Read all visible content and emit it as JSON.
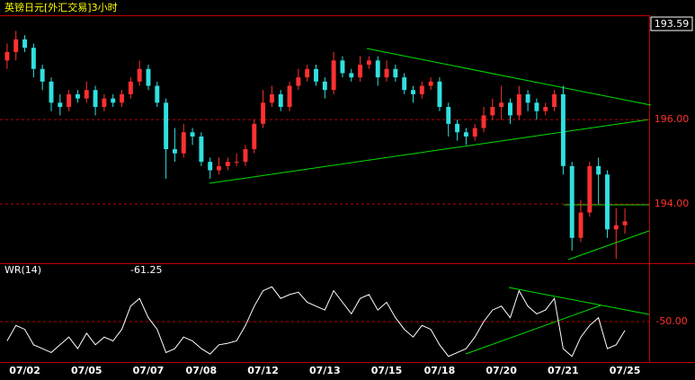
{
  "chart_data": [
    {
      "type": "candlestick",
      "title": "英镑日元[外汇交易]3小时",
      "categories": [
        null,
        null,
        "07/02",
        null,
        null,
        null,
        null,
        null,
        null,
        "07/05",
        null,
        null,
        null,
        null,
        null,
        null,
        "07/07",
        null,
        null,
        null,
        null,
        null,
        "07/08",
        null,
        null,
        null,
        null,
        null,
        null,
        "07/12",
        null,
        null,
        null,
        null,
        null,
        null,
        "07/13",
        null,
        null,
        null,
        null,
        null,
        null,
        "07/15",
        null,
        null,
        null,
        null,
        null,
        "07/18",
        null,
        null,
        null,
        null,
        null,
        null,
        "07/20",
        null,
        null,
        null,
        null,
        null,
        null,
        "07/21",
        null,
        null,
        null,
        null,
        null,
        null,
        "07/25"
      ],
      "open": [
        197.4,
        197.6,
        197.9,
        197.7,
        197.2,
        196.9,
        196.4,
        196.3,
        196.6,
        196.5,
        196.7,
        196.3,
        196.5,
        196.4,
        196.6,
        196.9,
        197.2,
        196.8,
        196.4,
        195.3,
        195.2,
        195.7,
        195.6,
        195.0,
        194.8,
        194.9,
        195.0,
        195.0,
        195.3,
        195.9,
        196.4,
        196.6,
        196.3,
        196.8,
        197.0,
        197.2,
        196.9,
        196.7,
        197.4,
        197.1,
        197.0,
        197.3,
        197.4,
        197.0,
        197.2,
        197.0,
        196.7,
        196.6,
        196.8,
        196.9,
        196.3,
        195.9,
        195.7,
        195.6,
        195.8,
        196.1,
        196.3,
        196.4,
        196.1,
        196.6,
        196.4,
        196.2,
        196.3,
        196.6,
        194.9,
        193.2,
        193.8,
        194.9,
        194.7,
        193.4,
        193.5
      ],
      "high": [
        197.8,
        198.1,
        198.0,
        197.8,
        197.3,
        197.0,
        196.6,
        196.7,
        196.7,
        196.9,
        196.8,
        196.6,
        196.6,
        196.7,
        197.0,
        197.4,
        197.3,
        196.9,
        196.5,
        195.8,
        195.9,
        195.8,
        195.7,
        195.1,
        195.1,
        195.1,
        195.2,
        195.4,
        196.0,
        196.7,
        196.8,
        196.7,
        196.9,
        197.2,
        197.3,
        197.3,
        197.0,
        197.6,
        197.5,
        197.2,
        197.5,
        197.5,
        197.5,
        197.4,
        197.3,
        197.1,
        196.8,
        196.9,
        197.0,
        197.0,
        196.4,
        196.0,
        195.8,
        195.9,
        196.3,
        196.5,
        196.8,
        196.5,
        196.8,
        196.7,
        196.5,
        196.4,
        196.7,
        196.8,
        195.0,
        194.1,
        195.0,
        195.1,
        194.8,
        193.9,
        193.9
      ],
      "low": [
        197.2,
        197.4,
        197.6,
        197.0,
        196.7,
        196.2,
        196.1,
        196.2,
        196.4,
        196.4,
        196.1,
        196.2,
        196.3,
        196.3,
        196.5,
        196.8,
        196.7,
        196.3,
        194.6,
        195.0,
        195.1,
        195.4,
        194.9,
        194.6,
        194.7,
        194.8,
        194.9,
        194.9,
        195.2,
        195.8,
        196.3,
        196.2,
        196.2,
        196.7,
        196.9,
        196.8,
        196.5,
        196.6,
        197.0,
        196.9,
        196.9,
        197.2,
        196.8,
        196.9,
        196.9,
        196.6,
        196.4,
        196.5,
        196.7,
        196.2,
        195.6,
        195.5,
        195.4,
        195.5,
        195.7,
        196.0,
        196.0,
        195.9,
        196.0,
        196.2,
        196.0,
        196.1,
        196.2,
        194.7,
        192.9,
        193.1,
        193.7,
        194.0,
        193.2,
        192.7,
        193.3
      ],
      "close": [
        197.6,
        197.9,
        197.7,
        197.2,
        196.9,
        196.4,
        196.3,
        196.6,
        196.5,
        196.7,
        196.3,
        196.5,
        196.4,
        196.6,
        196.9,
        197.2,
        196.8,
        196.4,
        195.3,
        195.2,
        195.7,
        195.6,
        195.0,
        194.8,
        194.9,
        195.0,
        195.0,
        195.3,
        195.9,
        196.4,
        196.6,
        196.3,
        196.8,
        197.0,
        197.2,
        196.9,
        196.7,
        197.4,
        197.1,
        197.0,
        197.3,
        197.4,
        197.0,
        197.2,
        197.0,
        196.7,
        196.6,
        196.8,
        196.9,
        196.3,
        195.9,
        195.7,
        195.6,
        195.8,
        196.1,
        196.3,
        196.4,
        196.1,
        196.6,
        196.4,
        196.2,
        196.3,
        196.6,
        194.9,
        193.2,
        193.8,
        194.9,
        194.7,
        193.4,
        193.5,
        193.59
      ],
      "up_color": "#ff3030",
      "down_color": "#30e0e0",
      "ylim": [
        192.6,
        198.47
      ],
      "yticks": [
        {
          "value": 194,
          "label": "194.00"
        },
        {
          "value": 196,
          "label": "196.00"
        }
      ]
    },
    {
      "type": "line",
      "title": "WR(14)",
      "color": "#ffffff",
      "values": [
        -75,
        -55,
        -60,
        -80,
        -85,
        -90,
        -80,
        -70,
        -85,
        -65,
        -80,
        -70,
        -75,
        -60,
        -30,
        -20,
        -45,
        -60,
        -90,
        -85,
        -70,
        -75,
        -85,
        -92,
        -80,
        -78,
        -75,
        -55,
        -30,
        -10,
        -5,
        -20,
        -15,
        -12,
        -25,
        -30,
        -35,
        -10,
        -25,
        -40,
        -20,
        -15,
        -35,
        -25,
        -45,
        -60,
        -70,
        -55,
        -60,
        -80,
        -95,
        -90,
        -85,
        -70,
        -50,
        -35,
        -30,
        -45,
        -10,
        -30,
        -40,
        -35,
        -20,
        -85,
        -95,
        -70,
        -55,
        -45,
        -85,
        -80,
        -61.25
      ],
      "ylim": [
        -100,
        0
      ],
      "yticks": [
        {
          "value": -50,
          "label": "-50.00"
        }
      ]
    }
  ]
}
